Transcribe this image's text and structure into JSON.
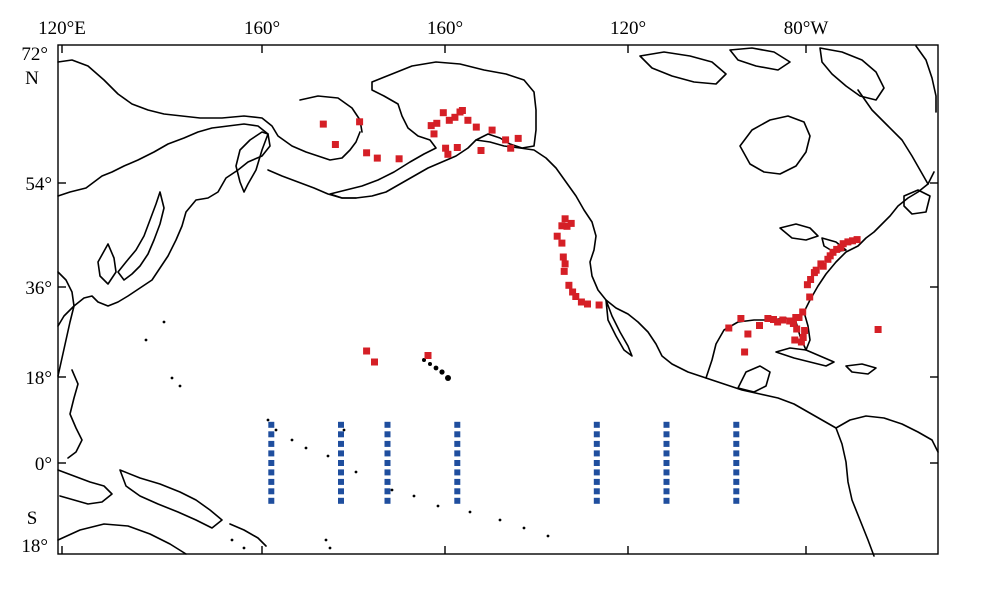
{
  "map": {
    "top_labels": [
      "120°E",
      "160°",
      "160°",
      "120°",
      "80°W"
    ],
    "left_labels": [
      "72°",
      "N",
      "54°",
      "36°",
      "18°",
      "0°",
      "S",
      "18°"
    ],
    "lon_range": [
      120,
      290
    ],
    "lat_range": [
      -18,
      72
    ],
    "colors": {
      "station_red": "#d51f26",
      "station_blue": "#1f4e9e",
      "coast": "#000000"
    },
    "red_stations": [
      [
        176.2,
        61.8
      ],
      [
        184.0,
        62.1
      ],
      [
        178.8,
        59.1
      ],
      [
        185.5,
        58.0
      ],
      [
        187.8,
        57.3
      ],
      [
        192.5,
        57.2
      ],
      [
        200.0,
        60.5
      ],
      [
        199.4,
        61.6
      ],
      [
        200.6,
        61.9
      ],
      [
        202.0,
        63.3
      ],
      [
        203.3,
        62.3
      ],
      [
        204.5,
        62.7
      ],
      [
        205.6,
        63.4
      ],
      [
        206.1,
        63.6
      ],
      [
        207.3,
        62.3
      ],
      [
        209.1,
        61.4
      ],
      [
        212.5,
        61.0
      ],
      [
        215.4,
        59.7
      ],
      [
        216.5,
        58.6
      ],
      [
        218.1,
        59.9
      ],
      [
        202.5,
        58.6
      ],
      [
        203.0,
        57.8
      ],
      [
        205.0,
        58.7
      ],
      [
        210.1,
        58.3
      ],
      [
        228.2,
        47.8
      ],
      [
        228.6,
        46.5
      ],
      [
        229.5,
        47.0
      ],
      [
        227.5,
        46.6
      ],
      [
        226.5,
        44.8
      ],
      [
        227.5,
        43.6
      ],
      [
        227.8,
        41.2
      ],
      [
        228.2,
        40.0
      ],
      [
        228.0,
        38.7
      ],
      [
        229.0,
        36.3
      ],
      [
        229.8,
        35.0
      ],
      [
        230.5,
        34.1
      ],
      [
        231.7,
        33.0
      ],
      [
        233.0,
        32.6
      ],
      [
        235.5,
        32.4
      ],
      [
        185.5,
        23.2
      ],
      [
        187.2,
        21.0
      ],
      [
        198.7,
        22.3
      ],
      [
        263.4,
        27.8
      ],
      [
        266.0,
        29.7
      ],
      [
        267.5,
        26.6
      ],
      [
        266.8,
        23.0
      ],
      [
        270.0,
        28.3
      ],
      [
        271.8,
        29.7
      ],
      [
        273.0,
        29.5
      ],
      [
        273.9,
        29.0
      ],
      [
        275.0,
        29.4
      ],
      [
        276.5,
        29.2
      ],
      [
        277.3,
        28.7
      ],
      [
        277.8,
        29.9
      ],
      [
        278.5,
        29.9
      ],
      [
        278.0,
        27.6
      ],
      [
        277.6,
        25.4
      ],
      [
        279.0,
        25.0
      ],
      [
        279.4,
        25.9
      ],
      [
        279.7,
        27.3
      ],
      [
        279.3,
        31.0
      ],
      [
        280.8,
        34.0
      ],
      [
        280.3,
        36.4
      ],
      [
        281.0,
        37.3
      ],
      [
        281.8,
        38.5
      ],
      [
        282.2,
        38.9
      ],
      [
        283.2,
        40.0
      ],
      [
        283.7,
        39.6
      ],
      [
        284.7,
        40.8
      ],
      [
        285.2,
        41.4
      ],
      [
        285.8,
        42.0
      ],
      [
        286.6,
        42.5
      ],
      [
        287.5,
        42.8
      ],
      [
        288.0,
        43.5
      ],
      [
        289.0,
        43.8
      ],
      [
        290.0,
        44.0
      ],
      [
        291.0,
        44.2
      ],
      [
        295.5,
        27.5
      ]
    ],
    "blue_columns": [
      165,
      180,
      190,
      205,
      235,
      250,
      265
    ],
    "blue_lats": [
      8,
      6,
      4,
      2,
      0,
      -2,
      -4,
      -6,
      -8
    ]
  }
}
